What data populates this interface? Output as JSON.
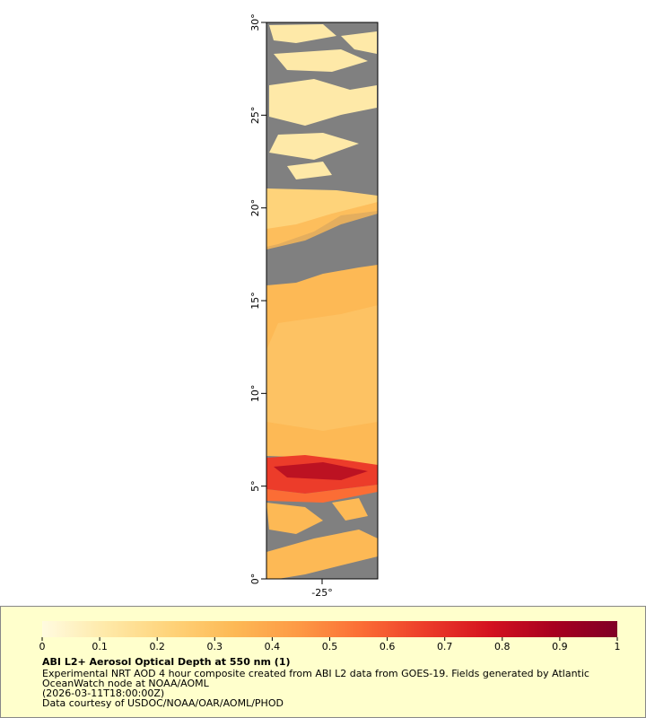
{
  "map": {
    "xlim": [
      -26.5,
      -23.5
    ],
    "ylim": [
      0,
      30
    ],
    "xticks": [
      {
        "value": -25,
        "label": "-25°"
      }
    ],
    "yticks": [
      {
        "value": 0,
        "label": "0°"
      },
      {
        "value": 5,
        "label": "5°"
      },
      {
        "value": 10,
        "label": "10°"
      },
      {
        "value": 15,
        "label": "15°"
      },
      {
        "value": 20,
        "label": "20°"
      },
      {
        "value": 25,
        "label": "25°"
      },
      {
        "value": 30,
        "label": "30°"
      }
    ]
  },
  "legend": {
    "title": "ABI L2+ Aerosol Optical Depth at 550 nm (1)",
    "lim": [
      0,
      1
    ],
    "ticks": [
      0,
      0.1,
      0.2,
      0.3,
      0.4,
      0.5,
      0.6,
      0.7,
      0.8,
      0.9,
      1
    ],
    "colors": [
      "#fffbe0",
      "#fee9a8",
      "#fed37a",
      "#fdb955",
      "#fd9a45",
      "#fb6d35",
      "#ec3c2a",
      "#d4121f",
      "#a8001f",
      "#800026"
    ],
    "notes": [
      "Experimental NRT AOD 4 hour composite created from ABI L2 data from GOES-19. Fields generated by Atlantic",
      "OceanWatch node at NOAA/AOML",
      "(2026-03-11T18:00:00Z)",
      "Data courtesy of USDOC/NOAA/OAR/AOML/PHOD"
    ]
  }
}
